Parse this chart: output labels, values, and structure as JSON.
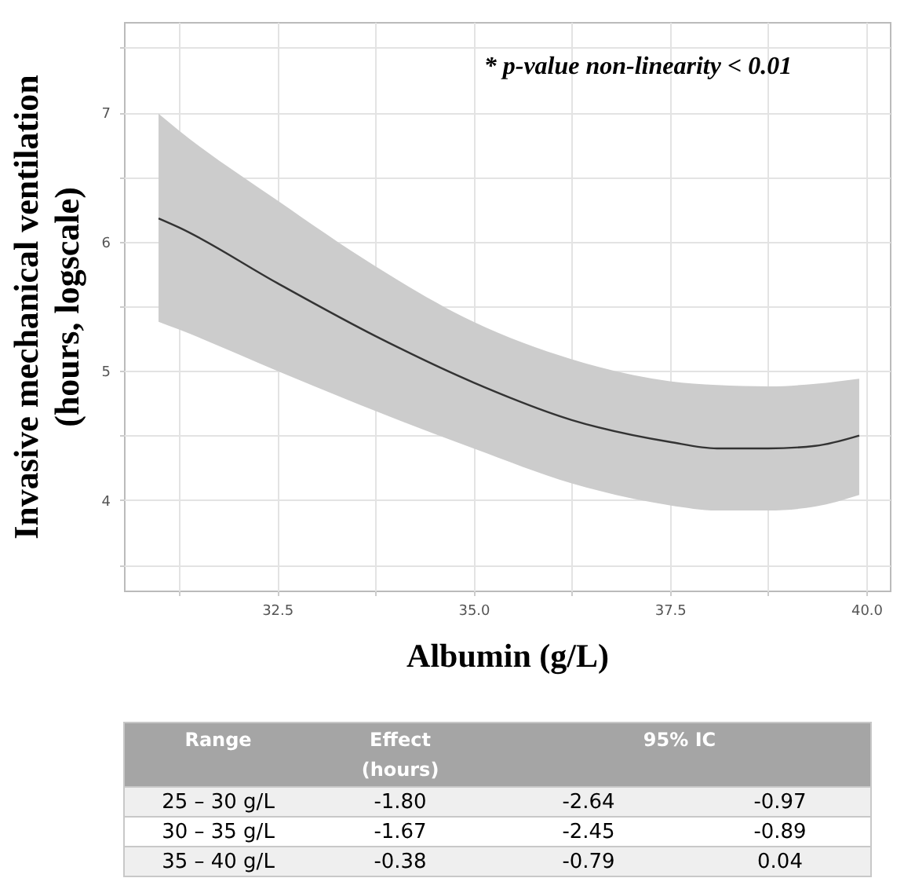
{
  "chart_data": [
    {
      "type": "line",
      "xlabel": "Albumin (g/L)",
      "ylabel": "Invasive mechanical ventilation\n(hours, logscale)",
      "x": [
        30.99,
        31.25,
        32.5,
        33.75,
        35.0,
        36.25,
        37.5,
        38.1,
        38.75,
        39.35,
        39.91
      ],
      "series": [
        {
          "color": "#333333",
          "values": [
            6.18,
            6.11,
            5.68,
            5.27,
            4.91,
            4.62,
            4.45,
            4.4,
            4.4,
            4.42,
            4.5
          ],
          "lower": [
            5.38,
            5.32,
            5.0,
            4.69,
            4.4,
            4.13,
            3.96,
            3.92,
            3.92,
            3.95,
            4.04
          ],
          "upper": [
            6.99,
            6.86,
            6.32,
            5.81,
            5.38,
            5.09,
            4.92,
            4.89,
            4.88,
            4.9,
            4.94
          ]
        }
      ],
      "xlim": [
        30.55,
        40.3
      ],
      "ylim": [
        3.3,
        7.7
      ],
      "xticks": [
        {
          "value": 31.25,
          "label": null
        },
        32.5,
        {
          "value": 33.75,
          "label": null
        },
        {
          "value": 35,
          "label": "35.0"
        },
        {
          "value": 36.25,
          "label": null
        },
        37.5,
        {
          "value": 38.75,
          "label": null
        },
        {
          "value": 40,
          "label": "40.0"
        }
      ],
      "yticks": [
        {
          "value": 3.5,
          "label": null
        },
        4,
        {
          "value": 4.5,
          "label": null
        },
        5,
        {
          "value": 5.5,
          "label": null
        },
        6,
        {
          "value": 6.5,
          "label": null
        },
        7,
        {
          "value": 7.5,
          "label": null
        }
      ],
      "grid": true,
      "annotations": [
        "* p-value non-linearity < 0.01"
      ]
    },
    {
      "type": "other",
      "categories": [
        "Range",
        "Effect\n(hours)",
        "95% IC"
      ],
      "y_categories": [
        "25 – 30 g/L",
        "30 – 35 g/L",
        "35 – 40 g/L"
      ],
      "cell_labels": [
        [
          "-1.80",
          "-2.64",
          "-0.97"
        ],
        [
          "-1.67",
          "-2.45",
          "-0.89"
        ],
        [
          "-0.38",
          "-0.79",
          "0.04"
        ]
      ]
    }
  ]
}
